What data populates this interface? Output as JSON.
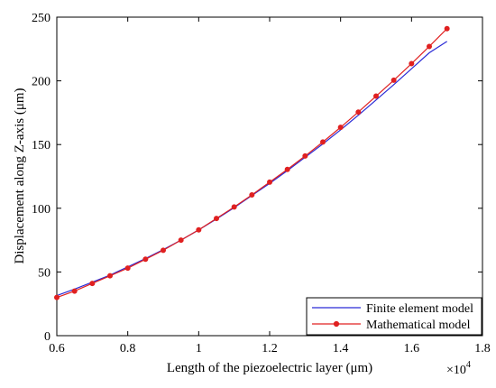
{
  "chart_data": {
    "type": "line",
    "title": "",
    "xlabel": "Length of the piezoelectric layer (μm)",
    "ylabel": "Displacement along Z-axis (μm)",
    "x_multiplier_label": "×10",
    "x_multiplier_exponent": "4",
    "xlim": [
      0.6,
      1.8
    ],
    "ylim": [
      0,
      250
    ],
    "x_ticks": [
      "0.6",
      "0.8",
      "1",
      "1.2",
      "1.4",
      "1.6",
      "1.8"
    ],
    "y_ticks": [
      "0",
      "50",
      "100",
      "150",
      "200",
      "250"
    ],
    "grid": false,
    "legend_position": "bottom-right",
    "series": [
      {
        "name": "Finite element model",
        "color": "#2b2bd6",
        "marker": "none",
        "x": [
          0.6,
          0.65,
          0.7,
          0.75,
          0.8,
          0.85,
          0.9,
          0.95,
          1.0,
          1.05,
          1.1,
          1.15,
          1.2,
          1.25,
          1.3,
          1.35,
          1.4,
          1.45,
          1.5,
          1.55,
          1.6,
          1.65,
          1.7
        ],
        "y": [
          31.5,
          36.5,
          42,
          47.5,
          54,
          60.5,
          67.5,
          75,
          83,
          91.5,
          100.5,
          110,
          119.5,
          129.5,
          140,
          150.5,
          161.5,
          173,
          185,
          197,
          209.5,
          222,
          231
        ]
      },
      {
        "name": "Mathematical model",
        "color": "#e02020",
        "marker": "circle",
        "x": [
          0.6,
          0.65,
          0.7,
          0.75,
          0.8,
          0.85,
          0.9,
          0.95,
          1.0,
          1.05,
          1.1,
          1.15,
          1.2,
          1.25,
          1.3,
          1.35,
          1.4,
          1.45,
          1.5,
          1.55,
          1.6,
          1.65,
          1.7
        ],
        "y": [
          30,
          35,
          41,
          47,
          53,
          60,
          67,
          75,
          83,
          92,
          101,
          110.5,
          120.5,
          130.5,
          141,
          152,
          163.5,
          175.5,
          188,
          200.5,
          213.5,
          227,
          241
        ]
      }
    ]
  }
}
